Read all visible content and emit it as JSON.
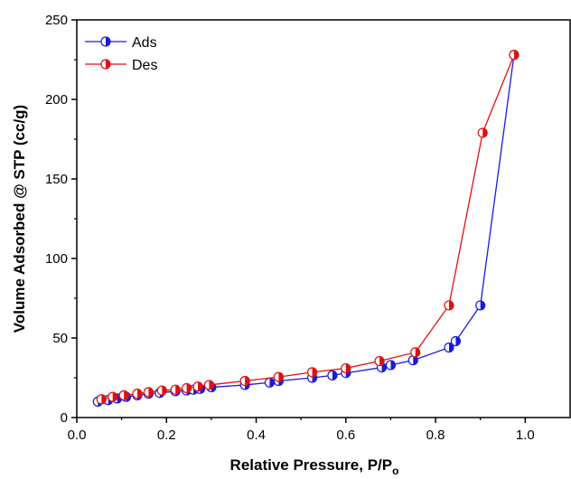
{
  "chart_data": {
    "type": "line",
    "xlabel": "Relative Pressure, P/P",
    "xlabel_sub": "o",
    "ylabel": "Volume Adsorbed @ STP (cc/g)",
    "xlim": [
      0.0,
      1.1
    ],
    "ylim": [
      0,
      250
    ],
    "xticks": [
      0.0,
      0.2,
      0.4,
      0.6,
      0.8,
      1.0
    ],
    "xtick_labels": [
      "0.0",
      "0.2",
      "0.4",
      "0.6",
      "0.8",
      "1.0"
    ],
    "yticks": [
      0,
      50,
      100,
      150,
      200,
      250
    ],
    "ytick_labels": [
      "0",
      "50",
      "100",
      "150",
      "200",
      "250"
    ],
    "grid": false,
    "legend_position": "top-left",
    "series": [
      {
        "name": "Ads",
        "color": "#1a1adb",
        "x": [
          0.047,
          0.07,
          0.09,
          0.11,
          0.135,
          0.16,
          0.185,
          0.22,
          0.245,
          0.26,
          0.275,
          0.3,
          0.375,
          0.43,
          0.45,
          0.525,
          0.57,
          0.6,
          0.68,
          0.7,
          0.75,
          0.83,
          0.845,
          0.9,
          0.975
        ],
        "y": [
          10,
          11,
          12,
          13,
          14,
          15,
          15.5,
          16.5,
          17,
          17.5,
          18,
          19,
          20.5,
          22,
          23,
          25,
          26.5,
          28,
          31.5,
          33,
          36,
          44,
          48,
          70.5,
          228
        ]
      },
      {
        "name": "Des",
        "color": "#e01010",
        "x": [
          0.055,
          0.08,
          0.105,
          0.135,
          0.16,
          0.19,
          0.22,
          0.245,
          0.27,
          0.295,
          0.375,
          0.45,
          0.525,
          0.6,
          0.675,
          0.755,
          0.83,
          0.905,
          0.975
        ],
        "y": [
          11.5,
          13,
          14,
          15,
          16,
          17,
          17.5,
          18.5,
          19.5,
          20.5,
          23,
          25.5,
          28.5,
          31,
          35.5,
          41,
          70.5,
          179,
          228
        ]
      }
    ]
  }
}
